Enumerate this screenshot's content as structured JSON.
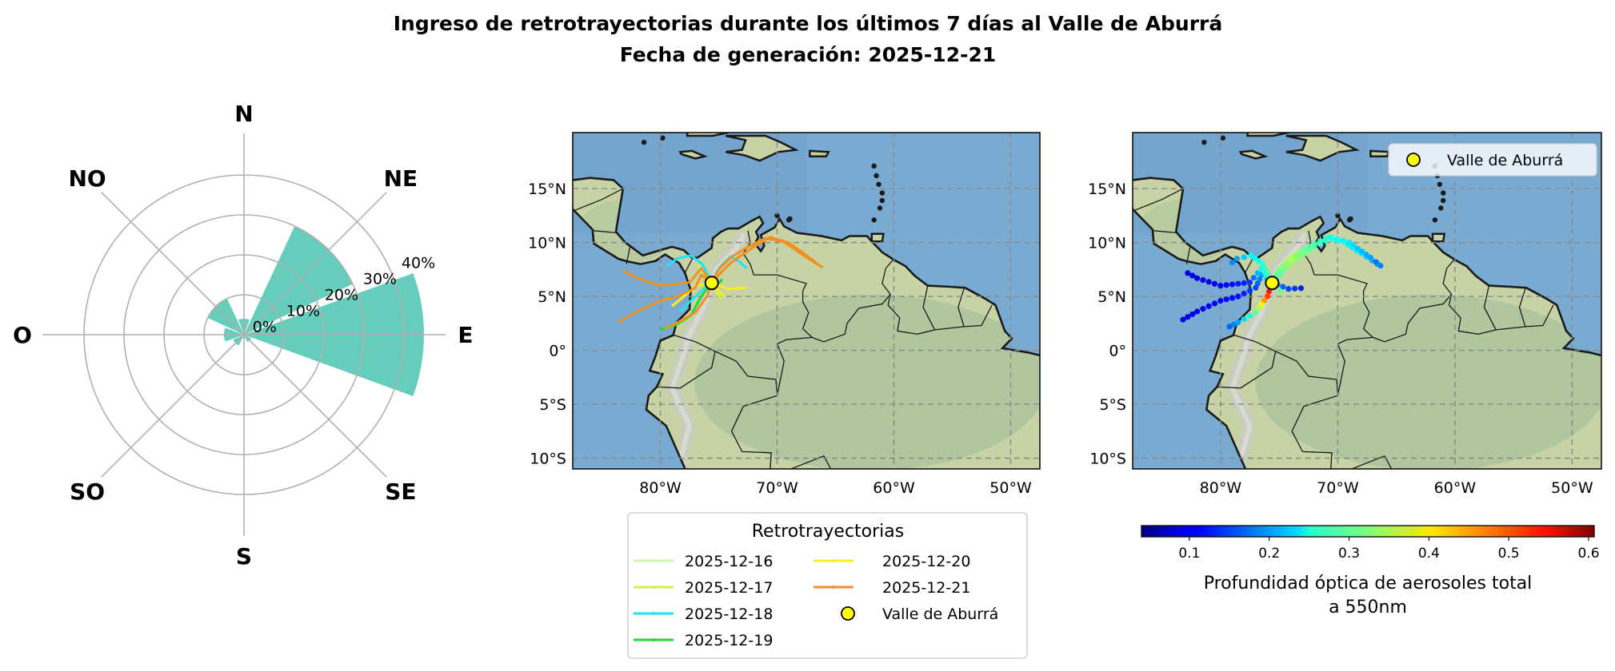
{
  "title": {
    "line1": "Ingreso de retrotrayectorias durante los últimos 7 días al Valle de Aburrá",
    "line2": "Fecha de generación: 2025-12-21"
  },
  "chart_data": [
    {
      "type": "bar",
      "subtype": "polar-rose",
      "categories": [
        "N",
        "NE",
        "E",
        "SE",
        "S",
        "SO",
        "O",
        "NO"
      ],
      "directions_deg": [
        0,
        45,
        90,
        135,
        180,
        225,
        270,
        315
      ],
      "values": [
        4,
        30,
        45,
        2,
        1,
        3,
        5,
        10
      ],
      "unit": "%",
      "radial_ticks": [
        "0%",
        "10%",
        "20%",
        "30%",
        "40%"
      ],
      "rlim": [
        0,
        40
      ],
      "grid": true,
      "color": "#66cdbd"
    },
    {
      "type": "line",
      "subtype": "map-trajectories",
      "xlim": [
        -87.5,
        -47.5
      ],
      "ylim": [
        -11,
        20.2
      ],
      "xticks": [
        {
          "v": -80,
          "label": "80°W"
        },
        {
          "v": -70,
          "label": "70°W"
        },
        {
          "v": -60,
          "label": "60°W"
        },
        {
          "v": -50,
          "label": "50°W"
        }
      ],
      "yticks": [
        {
          "v": 15,
          "label": "15°N"
        },
        {
          "v": 10,
          "label": "10°N"
        },
        {
          "v": 5,
          "label": "5°N"
        },
        {
          "v": 0,
          "label": "0°"
        },
        {
          "v": -5,
          "label": "5°S"
        },
        {
          "v": -10,
          "label": "10°S"
        }
      ],
      "grid": true,
      "legend": {
        "title": "Retrotrayectorias",
        "placement": "below"
      },
      "series": [
        {
          "name": "2025-12-16",
          "color": "#cdf7b4",
          "paths": [
            [
              [
                -75.6,
                6.3
              ],
              [
                -75.9,
                6.9
              ],
              [
                -76.4,
                7.6
              ]
            ]
          ]
        },
        {
          "name": "2025-12-17",
          "color": "#d8f23a",
          "paths": [
            [
              [
                -75.6,
                6.3
              ],
              [
                -75.2,
                5.4
              ],
              [
                -74.8,
                4.8
              ]
            ],
            [
              [
                -75.6,
                6.3
              ],
              [
                -76.3,
                7.2
              ],
              [
                -76.8,
                7.9
              ]
            ]
          ]
        },
        {
          "name": "2025-12-18",
          "color": "#22e1f5",
          "paths": [
            [
              [
                -75.6,
                6.3
              ],
              [
                -76.4,
                8.0
              ],
              [
                -77.4,
                8.8
              ],
              [
                -78.6,
                8.5
              ],
              [
                -79.4,
                7.8
              ]
            ],
            [
              [
                -75.6,
                6.3
              ],
              [
                -75.0,
                7.6
              ],
              [
                -74.0,
                8.7
              ],
              [
                -73.2,
                8.2
              ],
              [
                -72.6,
                7.6
              ]
            ],
            [
              [
                -76.0,
                6.0
              ],
              [
                -77.2,
                4.8
              ],
              [
                -78.3,
                3.6
              ]
            ]
          ]
        },
        {
          "name": "2025-12-19",
          "color": "#1edc32",
          "paths": [
            [
              [
                -75.6,
                6.3
              ],
              [
                -76.5,
                5.0
              ],
              [
                -77.4,
                3.2
              ],
              [
                -78.8,
                2.3
              ],
              [
                -80.0,
                1.9
              ]
            ],
            [
              [
                -75.6,
                6.3
              ],
              [
                -75.0,
                6.2
              ],
              [
                -74.7,
                6.6
              ]
            ]
          ]
        },
        {
          "name": "2025-12-20",
          "color": "#f5f01e",
          "paths": [
            [
              [
                -75.6,
                6.3
              ],
              [
                -76.9,
                6.0
              ],
              [
                -78.0,
                5.0
              ],
              [
                -79.0,
                4.1
              ]
            ],
            [
              [
                -75.6,
                6.3
              ],
              [
                -74.2,
                5.7
              ],
              [
                -72.6,
                5.8
              ]
            ],
            [
              [
                -75.3,
                6.0
              ],
              [
                -74.6,
                5.0
              ]
            ]
          ]
        },
        {
          "name": "2025-12-21",
          "color": "#f0921e",
          "paths": [
            [
              [
                -75.6,
                6.3
              ],
              [
                -75.0,
                7.5
              ],
              [
                -74.0,
                8.6
              ],
              [
                -72.5,
                9.6
              ],
              [
                -71.0,
                10.4
              ],
              [
                -69.5,
                10.1
              ],
              [
                -68.0,
                9.0
              ],
              [
                -66.6,
                8.0
              ],
              [
                -66.1,
                7.7
              ]
            ],
            [
              [
                -75.6,
                6.3
              ],
              [
                -74.0,
                8.1
              ],
              [
                -72.0,
                9.6
              ],
              [
                -70.6,
                10.5
              ],
              [
                -69.0,
                10.0
              ],
              [
                -67.2,
                8.6
              ],
              [
                -66.3,
                7.8
              ]
            ],
            [
              [
                -75.6,
                6.3
              ],
              [
                -76.5,
                7.0
              ],
              [
                -77.0,
                5.8
              ],
              [
                -78.5,
                5.0
              ],
              [
                -80.0,
                4.6
              ],
              [
                -82.0,
                3.6
              ],
              [
                -83.6,
                2.6
              ]
            ],
            [
              [
                -75.6,
                6.3
              ],
              [
                -76.5,
                7.6
              ],
              [
                -77.5,
                6.3
              ],
              [
                -80.0,
                6.0
              ],
              [
                -82.0,
                6.7
              ],
              [
                -83.2,
                7.4
              ]
            ],
            [
              [
                -75.6,
                6.3
              ],
              [
                -76.0,
                5.0
              ],
              [
                -77.0,
                3.5
              ],
              [
                -78.5,
                2.6
              ],
              [
                -79.6,
                2.0
              ]
            ]
          ]
        }
      ],
      "marker": {
        "name": "Valle de Aburrá",
        "lon": -75.6,
        "lat": 6.25,
        "color": "#ffff00"
      }
    },
    {
      "type": "scatter",
      "subtype": "map-aod-points",
      "xlim": [
        -87.5,
        -47.5
      ],
      "ylim": [
        -11,
        20.2
      ],
      "xticks": [
        {
          "v": -80,
          "label": "80°W"
        },
        {
          "v": -70,
          "label": "70°W"
        },
        {
          "v": -60,
          "label": "60°W"
        },
        {
          "v": -50,
          "label": "50°W"
        }
      ],
      "yticks": [
        {
          "v": 15,
          "label": "15°N"
        },
        {
          "v": 10,
          "label": "10°N"
        },
        {
          "v": 5,
          "label": "5°N"
        },
        {
          "v": 0,
          "label": "0°"
        },
        {
          "v": -5,
          "label": "5°S"
        },
        {
          "v": -10,
          "label": "10°S"
        }
      ],
      "grid": true,
      "legend": {
        "placement": "top-right"
      },
      "tracks": [
        {
          "points": [
            [
              -75.6,
              6.3
            ],
            [
              -75.0,
              7.5
            ],
            [
              -74.0,
              8.6
            ],
            [
              -72.5,
              9.6
            ],
            [
              -71.0,
              10.4
            ],
            [
              -69.5,
              10.1
            ],
            [
              -68.0,
              9.0
            ],
            [
              -66.6,
              8.0
            ],
            [
              -66.1,
              7.7
            ]
          ],
          "aod": [
            0.3,
            0.32,
            0.35,
            0.3,
            0.27,
            0.25,
            0.24,
            0.2,
            0.17
          ]
        },
        {
          "points": [
            [
              -75.6,
              6.3
            ],
            [
              -74.0,
              8.1
            ],
            [
              -72.0,
              9.6
            ],
            [
              -70.6,
              10.5
            ],
            [
              -69.0,
              10.0
            ],
            [
              -67.2,
              8.6
            ],
            [
              -66.3,
              7.8
            ]
          ],
          "aod": [
            0.28,
            0.34,
            0.3,
            0.27,
            0.24,
            0.2,
            0.15
          ]
        },
        {
          "points": [
            [
              -75.6,
              6.3
            ],
            [
              -76.5,
              7.0
            ],
            [
              -77.0,
              5.8
            ],
            [
              -78.5,
              5.0
            ],
            [
              -80.0,
              4.6
            ],
            [
              -82.0,
              3.6
            ],
            [
              -83.6,
              2.6
            ]
          ],
          "aod": [
            0.25,
            0.2,
            0.15,
            0.12,
            0.11,
            0.1,
            0.1
          ]
        },
        {
          "points": [
            [
              -75.6,
              6.3
            ],
            [
              -76.5,
              7.6
            ],
            [
              -77.5,
              6.3
            ],
            [
              -80.0,
              6.0
            ],
            [
              -82.0,
              6.7
            ],
            [
              -83.2,
              7.4
            ]
          ],
          "aod": [
            0.3,
            0.25,
            0.14,
            0.1,
            0.1,
            0.09
          ]
        },
        {
          "points": [
            [
              -75.6,
              6.3
            ],
            [
              -76.0,
              5.0
            ],
            [
              -77.0,
              3.5
            ],
            [
              -78.5,
              2.6
            ],
            [
              -79.6,
              2.0
            ]
          ],
          "aod": [
            0.55,
            0.5,
            0.3,
            0.2,
            0.15
          ]
        },
        {
          "points": [
            [
              -75.6,
              6.3
            ],
            [
              -76.4,
              8.0
            ],
            [
              -77.4,
              8.8
            ],
            [
              -78.6,
              8.5
            ],
            [
              -79.4,
              7.8
            ]
          ],
          "aod": [
            0.3,
            0.28,
            0.25,
            0.2,
            0.18
          ]
        },
        {
          "points": [
            [
              -75.6,
              6.3
            ],
            [
              -74.2,
              5.7
            ],
            [
              -72.6,
              5.8
            ]
          ],
          "aod": [
            0.2,
            0.15,
            0.12
          ]
        },
        {
          "points": [
            [
              -75.3,
              6.0
            ],
            [
              -74.6,
              5.0
            ]
          ],
          "aod": [
            0.5,
            0.12
          ]
        }
      ],
      "marker": {
        "name": "Valle de Aburrá",
        "lon": -75.6,
        "lat": 6.25,
        "color": "#ffff00"
      },
      "colorbar": {
        "label_line1": "Profundidad óptica de aerosoles total",
        "label_line2": "a 550nm",
        "colormap": "jet",
        "range": [
          0.04,
          0.607
        ],
        "ticks": [
          {
            "v": 0.1,
            "label": "0.1"
          },
          {
            "v": 0.2,
            "label": "0.2"
          },
          {
            "v": 0.3,
            "label": "0.3"
          },
          {
            "v": 0.4,
            "label": "0.4"
          },
          {
            "v": 0.5,
            "label": "0.5"
          },
          {
            "v": 0.6,
            "label": "0.6"
          }
        ]
      }
    }
  ]
}
